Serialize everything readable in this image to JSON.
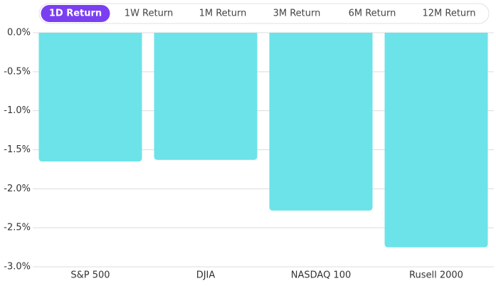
{
  "tabs": {
    "items": [
      "1D Return",
      "1W Return",
      "1M Return",
      "3M Return",
      "6M Return",
      "12M Return"
    ],
    "active": 0
  },
  "chart_data": {
    "type": "bar",
    "categories": [
      "S&P 500",
      "DJIA",
      "NASDAQ 100",
      "Rusell 2000"
    ],
    "values": [
      -1.65,
      -1.63,
      -2.28,
      -2.75
    ],
    "color": "#6ce3e8",
    "ylim": [
      -3,
      0
    ],
    "yticks": [
      {
        "value": 0,
        "label": "0.0%"
      },
      {
        "value": -0.5,
        "label": "-0.5%"
      },
      {
        "value": -1,
        "label": "-1.0%"
      },
      {
        "value": -1.5,
        "label": "-1.5%"
      },
      {
        "value": -2,
        "label": "-2.0%"
      },
      {
        "value": -2.5,
        "label": "-2.5%"
      },
      {
        "value": -3,
        "label": "-3.0%"
      }
    ],
    "grid": true
  }
}
